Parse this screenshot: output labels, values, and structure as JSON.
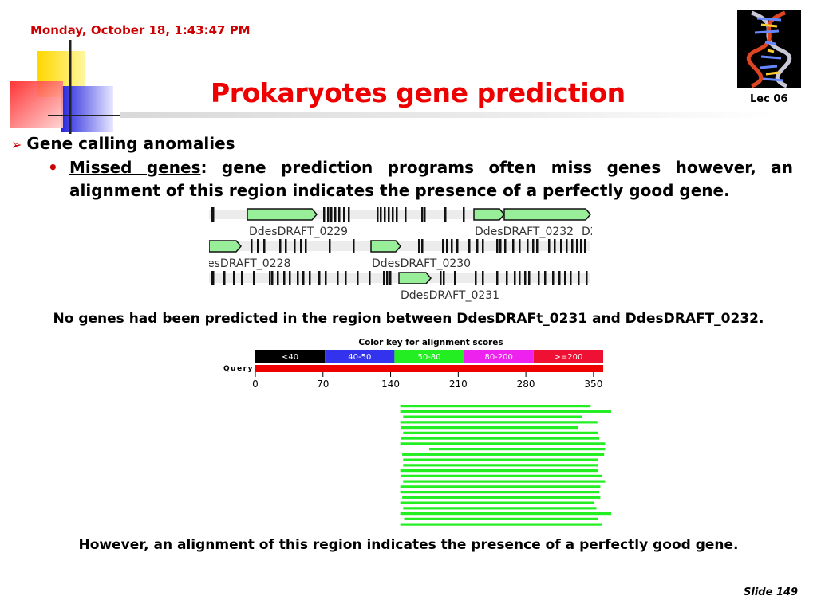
{
  "header": {
    "date": "Monday, October 18, 1:43:47 PM",
    "title": "Prokaryotes gene prediction",
    "lecture": "Lec 06"
  },
  "body": {
    "bullet1": "Gene calling anomalies",
    "bullet2_term": "Missed genes",
    "bullet2_text": ": gene prediction programs often miss genes however, an alignment of this region indicates the presence of a perfectly good gene.",
    "caption1": "No genes had been predicted in the region between DdesDRAFt_0231 and DdesDRAFT_0232.",
    "caption2": "However, an alignment of this region indicates the presence of a perfectly good gene."
  },
  "gene_map": {
    "labels": {
      "g0229": "DdesDRAFT_0229",
      "g0232": "DdesDRAFT_0232",
      "g0232_tail": "D2",
      "g0228": "esDRAFT_0228",
      "g0230": "DdesDRAFT_0230",
      "g0231": "DdesDRAFT_0231"
    },
    "gene_color": "#99ee99"
  },
  "alignment": {
    "color_key_title": "Color key for alignment scores",
    "query_label": "Query",
    "score_bins": [
      {
        "label": "<40",
        "color": "#000000"
      },
      {
        "label": "40-50",
        "color": "#3333ee"
      },
      {
        "label": "50-80",
        "color": "#22ee22"
      },
      {
        "label": "80-200",
        "color": "#ee22ee"
      },
      {
        "label": ">=200",
        "color": "#ee1133"
      }
    ],
    "query_color": "#ee0000",
    "axis": {
      "min": 0,
      "max": 360,
      "ticks": [
        0,
        70,
        140,
        210,
        280,
        350
      ]
    },
    "hit_color": "#22ee22",
    "hits": [
      [
        150,
        347
      ],
      [
        150,
        380
      ],
      [
        153,
        338
      ],
      [
        150,
        354
      ],
      [
        151,
        334
      ],
      [
        153,
        355
      ],
      [
        151,
        356
      ],
      [
        150,
        362
      ],
      [
        180,
        362
      ],
      [
        152,
        361
      ],
      [
        153,
        355
      ],
      [
        153,
        355
      ],
      [
        150,
        355
      ],
      [
        151,
        359
      ],
      [
        153,
        362
      ],
      [
        150,
        357
      ],
      [
        150,
        356
      ],
      [
        152,
        357
      ],
      [
        150,
        351
      ],
      [
        153,
        353
      ],
      [
        150,
        383
      ],
      [
        154,
        355
      ],
      [
        150,
        359
      ]
    ]
  }
}
